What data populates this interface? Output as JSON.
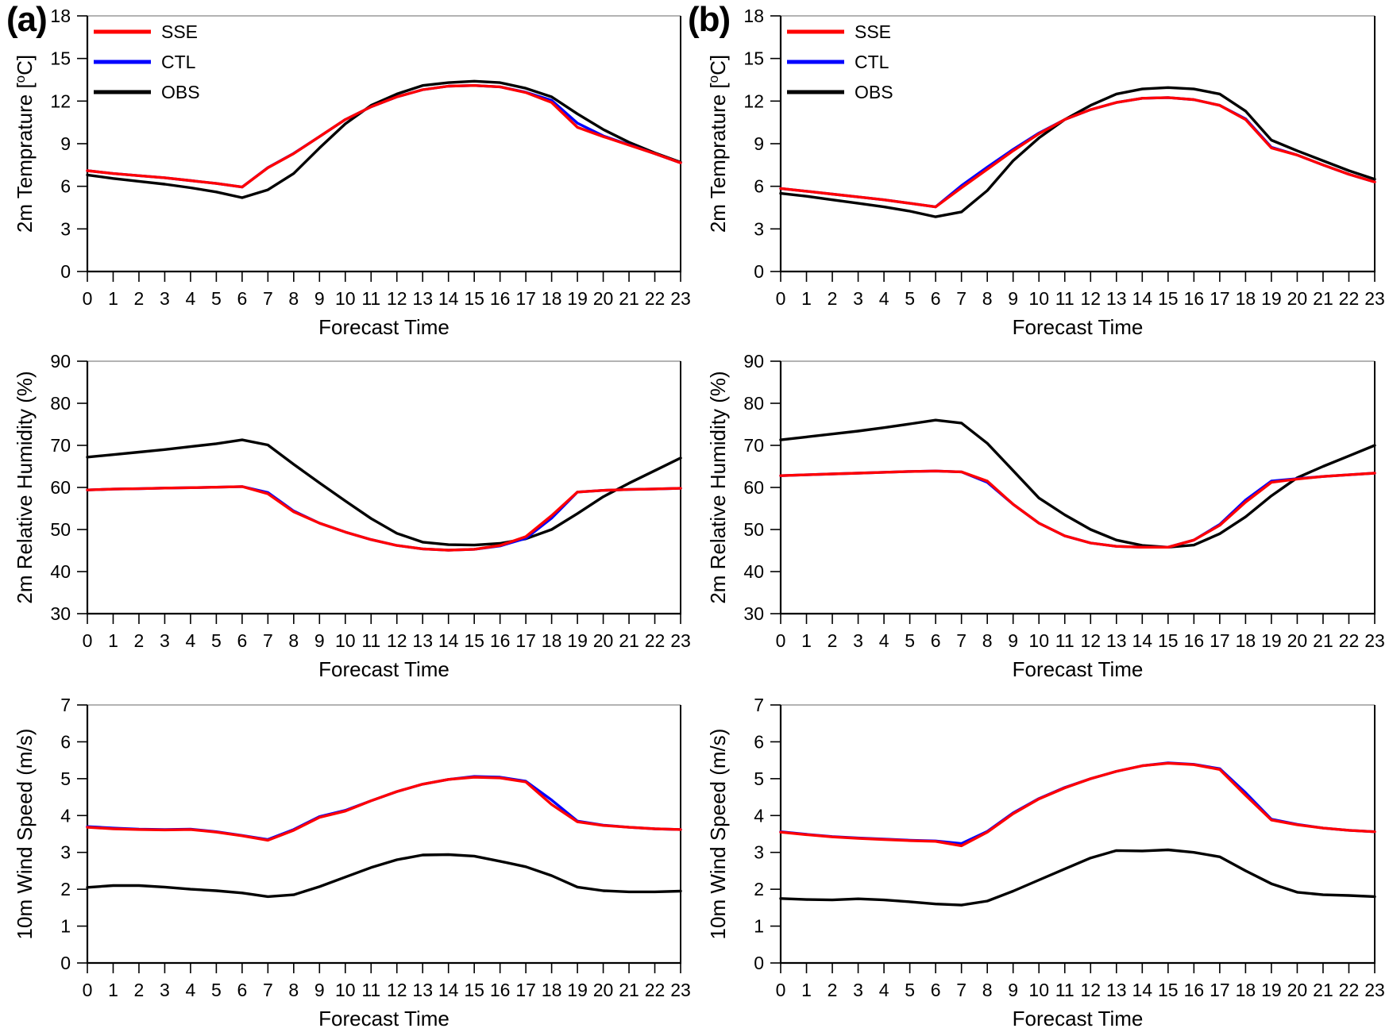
{
  "panel_labels": [
    {
      "label": "(a)"
    },
    {
      "label": "(b)"
    }
  ],
  "legend": {
    "entries": [
      {
        "label": "SSE",
        "color": "#ff0000"
      },
      {
        "label": "CTL",
        "color": "#0000ff"
      },
      {
        "label": "OBS",
        "color": "#000000"
      }
    ]
  },
  "colors": {
    "sse": "#ff0000",
    "ctl": "#0000ff",
    "obs": "#000000",
    "plot_top_border": "#9a9a9a",
    "axis": "#000000"
  },
  "chart_data": [
    {
      "id": "temperature-a",
      "panel": "(a)",
      "type": "line",
      "row": 0,
      "col": 0,
      "xlabel": "Forecast Time",
      "ylabel": "2m Temprature [°C]",
      "xlim": [
        0,
        23
      ],
      "ylim": [
        0,
        18
      ],
      "ytick_step": 3,
      "legend_visible": true,
      "grid": false,
      "x": [
        0,
        1,
        2,
        3,
        4,
        5,
        6,
        7,
        8,
        9,
        10,
        11,
        12,
        13,
        14,
        15,
        16,
        17,
        18,
        19,
        20,
        21,
        22,
        23
      ],
      "series": [
        {
          "name": "SSE",
          "color": "#ff0000",
          "values": [
            7.1,
            6.9,
            6.75,
            6.6,
            6.4,
            6.2,
            5.95,
            7.3,
            8.3,
            9.5,
            10.7,
            11.6,
            12.3,
            12.8,
            13.05,
            13.1,
            13.0,
            12.6,
            11.9,
            10.15,
            9.5,
            8.9,
            8.3,
            7.65
          ]
        },
        {
          "name": "CTL",
          "color": "#0000ff",
          "values": [
            7.1,
            6.9,
            6.75,
            6.6,
            6.4,
            6.2,
            5.95,
            7.32,
            8.32,
            9.5,
            10.7,
            11.6,
            12.3,
            12.8,
            13.05,
            13.1,
            13.0,
            12.62,
            12.05,
            10.45,
            9.55,
            8.92,
            8.3,
            7.65
          ]
        },
        {
          "name": "OBS",
          "color": "#000000",
          "values": [
            6.8,
            6.55,
            6.35,
            6.15,
            5.9,
            5.6,
            5.2,
            5.75,
            6.9,
            8.7,
            10.4,
            11.7,
            12.5,
            13.1,
            13.3,
            13.4,
            13.3,
            12.9,
            12.3,
            11.1,
            10.0,
            9.1,
            8.35,
            7.7
          ]
        }
      ]
    },
    {
      "id": "temperature-b",
      "panel": "(b)",
      "type": "line",
      "row": 0,
      "col": 1,
      "xlabel": "Forecast Time",
      "ylabel": "2m Temprature [°C]",
      "xlim": [
        0,
        23
      ],
      "ylim": [
        0,
        18
      ],
      "ytick_step": 3,
      "legend_visible": true,
      "grid": false,
      "x": [
        0,
        1,
        2,
        3,
        4,
        5,
        6,
        7,
        8,
        9,
        10,
        11,
        12,
        13,
        14,
        15,
        16,
        17,
        18,
        19,
        20,
        21,
        22,
        23
      ],
      "series": [
        {
          "name": "SSE",
          "color": "#ff0000",
          "values": [
            5.85,
            5.65,
            5.45,
            5.25,
            5.05,
            4.8,
            4.55,
            5.9,
            7.2,
            8.5,
            9.7,
            10.7,
            11.4,
            11.9,
            12.2,
            12.25,
            12.1,
            11.7,
            10.7,
            8.7,
            8.2,
            7.5,
            6.85,
            6.3
          ]
        },
        {
          "name": "CTL",
          "color": "#0000ff",
          "values": [
            5.85,
            5.65,
            5.45,
            5.25,
            5.05,
            4.8,
            4.55,
            6.05,
            7.35,
            8.6,
            9.75,
            10.7,
            11.4,
            11.9,
            12.2,
            12.25,
            12.1,
            11.7,
            10.75,
            8.75,
            8.2,
            7.5,
            6.85,
            6.3
          ]
        },
        {
          "name": "OBS",
          "color": "#000000",
          "values": [
            5.5,
            5.3,
            5.05,
            4.8,
            4.55,
            4.25,
            3.85,
            4.2,
            5.7,
            7.8,
            9.4,
            10.7,
            11.7,
            12.5,
            12.85,
            12.95,
            12.85,
            12.5,
            11.3,
            9.25,
            8.5,
            7.8,
            7.1,
            6.5
          ]
        }
      ]
    },
    {
      "id": "humidity-a",
      "panel": "(a)",
      "type": "line",
      "row": 1,
      "col": 0,
      "xlabel": "Forecast Time",
      "ylabel": "2m Relative Humidity (%)",
      "xlim": [
        0,
        23
      ],
      "ylim": [
        30,
        90
      ],
      "ytick_step": 10,
      "legend_visible": false,
      "grid": false,
      "x": [
        0,
        1,
        2,
        3,
        4,
        5,
        6,
        7,
        8,
        9,
        10,
        11,
        12,
        13,
        14,
        15,
        16,
        17,
        18,
        19,
        20,
        21,
        22,
        23
      ],
      "series": [
        {
          "name": "SSE",
          "color": "#ff0000",
          "values": [
            59.4,
            59.6,
            59.7,
            59.85,
            59.95,
            60.05,
            60.2,
            58.5,
            54.2,
            51.5,
            49.4,
            47.6,
            46.2,
            45.4,
            45.1,
            45.3,
            46.2,
            48.3,
            53.3,
            58.9,
            59.3,
            59.5,
            59.65,
            59.8
          ]
        },
        {
          "name": "CTL",
          "color": "#0000ff",
          "values": [
            59.4,
            59.6,
            59.7,
            59.85,
            59.95,
            60.05,
            60.2,
            58.8,
            54.4,
            51.5,
            49.4,
            47.6,
            46.2,
            45.4,
            45.1,
            45.3,
            46.1,
            47.9,
            52.7,
            58.9,
            59.3,
            59.5,
            59.65,
            59.8
          ]
        },
        {
          "name": "OBS",
          "color": "#000000",
          "values": [
            67.2,
            67.8,
            68.4,
            69.0,
            69.7,
            70.4,
            71.3,
            70.1,
            65.5,
            61.1,
            56.8,
            52.6,
            49.1,
            47.0,
            46.4,
            46.3,
            46.7,
            47.8,
            50.0,
            53.8,
            57.8,
            61.0,
            64.0,
            67.0
          ]
        }
      ]
    },
    {
      "id": "humidity-b",
      "panel": "(b)",
      "type": "line",
      "row": 1,
      "col": 1,
      "xlabel": "Forecast Time",
      "ylabel": "2m Relative Humidity (%)",
      "xlim": [
        0,
        23
      ],
      "ylim": [
        30,
        90
      ],
      "ytick_step": 10,
      "legend_visible": false,
      "grid": false,
      "x": [
        0,
        1,
        2,
        3,
        4,
        5,
        6,
        7,
        8,
        9,
        10,
        11,
        12,
        13,
        14,
        15,
        16,
        17,
        18,
        19,
        20,
        21,
        22,
        23
      ],
      "series": [
        {
          "name": "SSE",
          "color": "#ff0000",
          "values": [
            62.8,
            63.0,
            63.2,
            63.4,
            63.6,
            63.8,
            63.9,
            63.7,
            61.5,
            56.0,
            51.5,
            48.5,
            46.8,
            46.0,
            45.8,
            45.8,
            47.5,
            51.0,
            56.5,
            61.2,
            62.0,
            62.6,
            63.0,
            63.4
          ]
        },
        {
          "name": "CTL",
          "color": "#0000ff",
          "values": [
            62.8,
            63.0,
            63.2,
            63.4,
            63.6,
            63.8,
            63.9,
            63.7,
            61.2,
            56.0,
            51.5,
            48.5,
            46.8,
            46.0,
            45.8,
            45.8,
            47.5,
            51.2,
            57.0,
            61.5,
            62.1,
            62.6,
            63.0,
            63.4
          ]
        },
        {
          "name": "OBS",
          "color": "#000000",
          "values": [
            71.3,
            72.0,
            72.7,
            73.4,
            74.2,
            75.1,
            76.0,
            75.3,
            70.5,
            64.0,
            57.5,
            53.5,
            50.0,
            47.5,
            46.2,
            45.8,
            46.3,
            49.0,
            53.0,
            58.0,
            62.3,
            65.0,
            67.5,
            70.0
          ]
        }
      ]
    },
    {
      "id": "wind-a",
      "panel": "(a)",
      "type": "line",
      "row": 2,
      "col": 0,
      "xlabel": "Forecast Time",
      "ylabel": "10m Wind Speed (m/s)",
      "xlim": [
        0,
        23
      ],
      "ylim": [
        0,
        7
      ],
      "ytick_step": 1,
      "legend_visible": false,
      "grid": false,
      "x": [
        0,
        1,
        2,
        3,
        4,
        5,
        6,
        7,
        8,
        9,
        10,
        11,
        12,
        13,
        14,
        15,
        16,
        17,
        18,
        19,
        20,
        21,
        22,
        23
      ],
      "series": [
        {
          "name": "SSE",
          "color": "#ff0000",
          "values": [
            3.68,
            3.64,
            3.62,
            3.61,
            3.62,
            3.55,
            3.45,
            3.33,
            3.6,
            3.95,
            4.12,
            4.4,
            4.65,
            4.85,
            4.98,
            5.04,
            5.02,
            4.91,
            4.3,
            3.83,
            3.73,
            3.68,
            3.64,
            3.62
          ]
        },
        {
          "name": "CTL",
          "color": "#0000ff",
          "values": [
            3.7,
            3.66,
            3.63,
            3.62,
            3.63,
            3.56,
            3.46,
            3.35,
            3.62,
            3.97,
            4.14,
            4.4,
            4.65,
            4.85,
            4.98,
            5.06,
            5.04,
            4.93,
            4.42,
            3.85,
            3.74,
            3.68,
            3.64,
            3.62
          ]
        },
        {
          "name": "OBS",
          "color": "#000000",
          "values": [
            2.05,
            2.1,
            2.1,
            2.06,
            2.0,
            1.96,
            1.9,
            1.8,
            1.85,
            2.07,
            2.33,
            2.59,
            2.8,
            2.93,
            2.94,
            2.9,
            2.76,
            2.61,
            2.37,
            2.06,
            1.96,
            1.93,
            1.93,
            1.95
          ]
        }
      ]
    },
    {
      "id": "wind-b",
      "panel": "(b)",
      "type": "line",
      "row": 2,
      "col": 1,
      "xlabel": "Forecast Time",
      "ylabel": "10m Wind Speed (m/s)",
      "xlim": [
        0,
        23
      ],
      "ylim": [
        0,
        7
      ],
      "ytick_step": 1,
      "legend_visible": false,
      "grid": false,
      "x": [
        0,
        1,
        2,
        3,
        4,
        5,
        6,
        7,
        8,
        9,
        10,
        11,
        12,
        13,
        14,
        15,
        16,
        17,
        18,
        19,
        20,
        21,
        22,
        23
      ],
      "series": [
        {
          "name": "SSE",
          "color": "#ff0000",
          "values": [
            3.55,
            3.48,
            3.42,
            3.38,
            3.35,
            3.32,
            3.3,
            3.18,
            3.55,
            4.05,
            4.45,
            4.75,
            5.0,
            5.2,
            5.35,
            5.42,
            5.38,
            5.25,
            4.55,
            3.88,
            3.75,
            3.66,
            3.6,
            3.56
          ]
        },
        {
          "name": "CTL",
          "color": "#0000ff",
          "values": [
            3.56,
            3.49,
            3.43,
            3.39,
            3.36,
            3.33,
            3.31,
            3.24,
            3.57,
            4.07,
            4.46,
            4.76,
            5.0,
            5.2,
            5.35,
            5.43,
            5.39,
            5.27,
            4.62,
            3.9,
            3.76,
            3.66,
            3.6,
            3.56
          ]
        },
        {
          "name": "OBS",
          "color": "#000000",
          "values": [
            1.75,
            1.72,
            1.71,
            1.74,
            1.71,
            1.66,
            1.6,
            1.57,
            1.68,
            1.95,
            2.25,
            2.55,
            2.85,
            3.05,
            3.04,
            3.07,
            3.0,
            2.88,
            2.5,
            2.15,
            1.92,
            1.85,
            1.83,
            1.8
          ]
        }
      ]
    }
  ]
}
